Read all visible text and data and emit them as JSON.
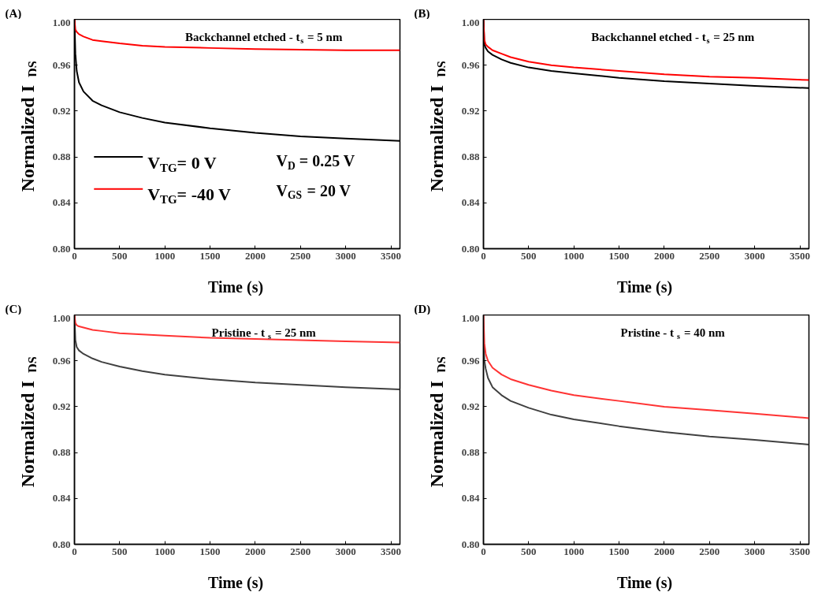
{
  "chart_data": [
    {
      "type": "line",
      "title": "Backchannel etched - t$_{s}$ = 5 nm",
      "xlabel": "Time (s)",
      "ylabel": "Normalized I$_{DS}$",
      "annotations": [
        "(A)",
        "V$_{D}$ = 0.25 V",
        "V$_{GS}$ = 20 V"
      ],
      "x": [
        0,
        10,
        25,
        50,
        100,
        200,
        300,
        500,
        750,
        1000,
        1500,
        2000,
        2500,
        3000,
        3600
      ],
      "series": [
        {
          "name": "V$_{TG}$= 0 V",
          "color": "#000000",
          "values": [
            1.0,
            0.97,
            0.955,
            0.945,
            0.937,
            0.929,
            0.925,
            0.919,
            0.914,
            0.91,
            0.905,
            0.901,
            0.898,
            0.896,
            0.894
          ]
        },
        {
          "name": "V$_{TG}$= -40 V",
          "color": "#ff0000",
          "values": [
            1.0,
            0.991,
            0.989,
            0.987,
            0.985,
            0.982,
            0.981,
            0.979,
            0.977,
            0.976,
            0.975,
            0.974,
            0.9735,
            0.973,
            0.973
          ]
        }
      ],
      "xlim": [
        0,
        3600
      ],
      "xticks": [
        0,
        500,
        1000,
        1500,
        2000,
        2500,
        3000,
        3500
      ],
      "ylim": [
        0.8,
        1.0
      ],
      "yticks": [
        {
          "value": 0.8,
          "label": "0.80"
        },
        {
          "value": 0.84,
          "label": "0.84"
        },
        {
          "value": 0.88,
          "label": "0.88"
        },
        {
          "value": 0.92,
          "label": "0.92"
        },
        {
          "value": 0.96,
          "label": "0.96"
        },
        {
          "value": 1.0,
          "label": "1.00"
        }
      ],
      "grid": false,
      "legend": "bottom left",
      "marker": "none",
      "line_style": "solid"
    },
    {
      "type": "line",
      "title": "Backchannel etched - t$_{s}$ = 25 nm",
      "xlabel": "Time (s)",
      "ylabel": "Normalized I$_{DS}$",
      "annotations": [
        "(B)"
      ],
      "x": [
        0,
        10,
        25,
        50,
        100,
        200,
        300,
        500,
        750,
        1000,
        1500,
        2000,
        2500,
        3000,
        3600
      ],
      "series": [
        {
          "color": "#000000",
          "values": [
            1.0,
            0.978,
            0.975,
            0.972,
            0.969,
            0.965,
            0.962,
            0.958,
            0.955,
            0.953,
            0.949,
            0.946,
            0.944,
            0.942,
            0.94
          ]
        },
        {
          "color": "#ff0000",
          "values": [
            1.0,
            0.982,
            0.978,
            0.976,
            0.973,
            0.97,
            0.967,
            0.963,
            0.96,
            0.958,
            0.955,
            0.952,
            0.95,
            0.949,
            0.947
          ]
        }
      ],
      "xlim": [
        0,
        3600
      ],
      "xticks": [
        0,
        500,
        1000,
        1500,
        2000,
        2500,
        3000,
        3500
      ],
      "ylim": [
        0.8,
        1.0
      ],
      "yticks": [
        {
          "value": 0.8,
          "label": "0.80"
        },
        {
          "value": 0.84,
          "label": "0.84"
        },
        {
          "value": 0.88,
          "label": "0.88"
        },
        {
          "value": 0.92,
          "label": "0.92"
        },
        {
          "value": 0.96,
          "label": "0.96"
        },
        {
          "value": 1.0,
          "label": "1.00"
        }
      ],
      "grid": false,
      "marker": "none",
      "line_style": "solid"
    },
    {
      "type": "line",
      "title": "Pristine - t$_{s}$ = 25 nm",
      "xlabel": "Time (s)",
      "ylabel": "Normalized I$_{DS}$",
      "annotations": [
        "(C)"
      ],
      "x": [
        0,
        10,
        25,
        50,
        100,
        200,
        300,
        500,
        750,
        1000,
        1500,
        2000,
        2500,
        3000,
        3600
      ],
      "series": [
        {
          "color": "#404040",
          "values": [
            1.0,
            0.978,
            0.972,
            0.969,
            0.966,
            0.962,
            0.959,
            0.955,
            0.951,
            0.948,
            0.944,
            0.941,
            0.939,
            0.937,
            0.935
          ]
        },
        {
          "color": "#ff3333",
          "values": [
            1.0,
            0.993,
            0.991,
            0.99,
            0.989,
            0.987,
            0.986,
            0.984,
            0.983,
            0.982,
            0.98,
            0.979,
            0.978,
            0.977,
            0.976
          ]
        }
      ],
      "xlim": [
        0,
        3600
      ],
      "xticks": [
        0,
        500,
        1000,
        1500,
        2000,
        2500,
        3000,
        3500
      ],
      "ylim": [
        0.8,
        1.0
      ],
      "yticks": [
        {
          "value": 0.8,
          "label": "0.80"
        },
        {
          "value": 0.84,
          "label": "0.84"
        },
        {
          "value": 0.88,
          "label": "0.88"
        },
        {
          "value": 0.92,
          "label": "0.92"
        },
        {
          "value": 0.96,
          "label": "0.96"
        },
        {
          "value": 1.0,
          "label": "1.00"
        }
      ],
      "grid": false,
      "marker": "none",
      "line_style": "solid"
    },
    {
      "type": "line",
      "title": "Pristine - t$_{s}$ = 40 nm",
      "xlabel": "Time (s)",
      "ylabel": "Normalized I$_{DS}$",
      "annotations": [
        "(D)"
      ],
      "x": [
        0,
        10,
        25,
        50,
        100,
        200,
        300,
        500,
        750,
        1000,
        1500,
        2000,
        2500,
        3000,
        3600
      ],
      "series": [
        {
          "color": "#404040",
          "values": [
            0.99,
            0.96,
            0.953,
            0.945,
            0.937,
            0.93,
            0.925,
            0.919,
            0.913,
            0.909,
            0.903,
            0.898,
            0.894,
            0.891,
            0.887
          ]
        },
        {
          "color": "#ff3333",
          "values": [
            1.0,
            0.975,
            0.966,
            0.96,
            0.954,
            0.948,
            0.944,
            0.939,
            0.934,
            0.93,
            0.925,
            0.92,
            0.917,
            0.914,
            0.91
          ]
        }
      ],
      "xlim": [
        0,
        3600
      ],
      "xticks": [
        0,
        500,
        1000,
        1500,
        2000,
        2500,
        3000,
        3500
      ],
      "ylim": [
        0.8,
        1.0
      ],
      "yticks": [
        {
          "value": 0.8,
          "label": "0.80"
        },
        {
          "value": 0.84,
          "label": "0.84"
        },
        {
          "value": 0.88,
          "label": "0.88"
        },
        {
          "value": 0.92,
          "label": "0.92"
        },
        {
          "value": 0.96,
          "label": "0.96"
        },
        {
          "value": 1.0,
          "label": "1.00"
        }
      ],
      "grid": false,
      "marker": "none",
      "line_style": "solid"
    }
  ]
}
